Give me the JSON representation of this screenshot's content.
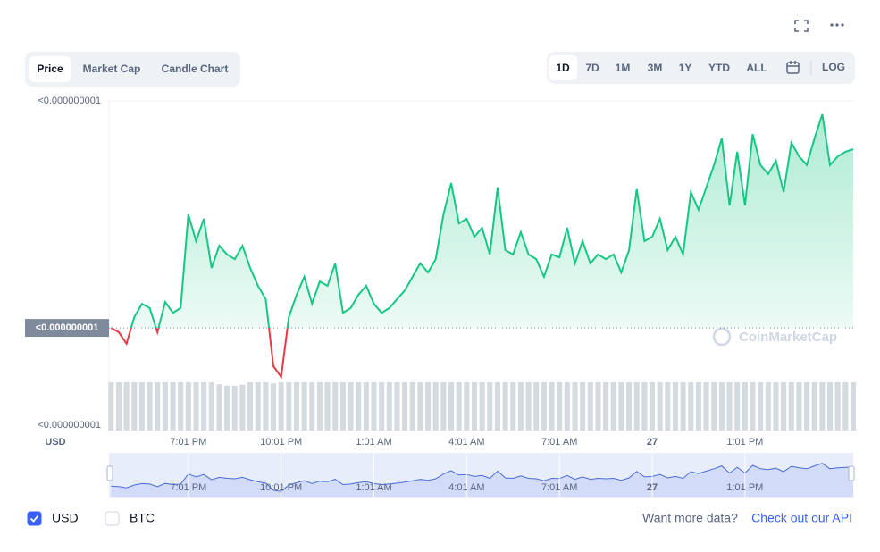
{
  "chart_data": {
    "type": "line",
    "categories": [
      null,
      null,
      null,
      null,
      null,
      null,
      null,
      null,
      null,
      null,
      "7:01 PM",
      null,
      null,
      null,
      null,
      null,
      null,
      null,
      null,
      null,
      null,
      null,
      "10:01 PM",
      null,
      null,
      null,
      null,
      null,
      null,
      null,
      null,
      null,
      null,
      null,
      "1:01 AM",
      null,
      null,
      null,
      null,
      null,
      null,
      null,
      null,
      null,
      null,
      null,
      "4:01 AM",
      null,
      null,
      null,
      null,
      null,
      null,
      null,
      null,
      null,
      null,
      null,
      "7:01 AM",
      null,
      null,
      null,
      null,
      null,
      null,
      null,
      null,
      null,
      null,
      null,
      "27",
      null,
      null,
      null,
      null,
      null,
      null,
      null,
      null,
      null,
      null,
      null,
      "1:01 PM",
      null,
      null,
      null,
      null,
      null,
      null,
      null,
      null,
      null,
      null,
      null,
      null,
      null,
      null
    ],
    "values": [
      9.27e-10,
      9.258e-10,
      9.226e-10,
      9.3e-10,
      9.337e-10,
      9.325e-10,
      9.258e-10,
      9.342e-10,
      9.312e-10,
      9.325e-10,
      9.585e-10,
      9.511e-10,
      9.573e-10,
      9.436e-10,
      9.498e-10,
      9.474e-10,
      9.461e-10,
      9.498e-10,
      9.436e-10,
      9.387e-10,
      9.35e-10,
      9.164e-10,
      9.134e-10,
      9.3e-10,
      9.362e-10,
      9.412e-10,
      9.337e-10,
      9.399e-10,
      9.387e-10,
      9.449e-10,
      9.312e-10,
      9.325e-10,
      9.362e-10,
      9.387e-10,
      9.337e-10,
      9.312e-10,
      9.325e-10,
      9.35e-10,
      9.374e-10,
      9.412e-10,
      9.449e-10,
      9.424e-10,
      9.461e-10,
      9.585e-10,
      9.672e-10,
      9.56e-10,
      9.573e-10,
      9.523e-10,
      9.548e-10,
      9.474e-10,
      9.66e-10,
      9.486e-10,
      9.474e-10,
      9.536e-10,
      9.474e-10,
      9.461e-10,
      9.412e-10,
      9.474e-10,
      9.466e-10,
      9.548e-10,
      9.449e-10,
      9.511e-10,
      9.449e-10,
      9.474e-10,
      9.461e-10,
      9.474e-10,
      9.424e-10,
      9.486e-10,
      9.655e-10,
      9.511e-10,
      9.523e-10,
      9.573e-10,
      9.486e-10,
      9.523e-10,
      9.474e-10,
      9.647e-10,
      9.598e-10,
      9.66e-10,
      9.722e-10,
      9.796e-10,
      9.61e-10,
      9.759e-10,
      9.61e-10,
      9.808e-10,
      9.722e-10,
      9.697e-10,
      9.734e-10,
      9.647e-10,
      9.784e-10,
      9.746e-10,
      9.722e-10,
      9.796e-10,
      9.863e-10,
      9.722e-10,
      9.746e-10,
      9.759e-10,
      9.766e-10
    ],
    "volume": {
      "ylim": [
        0,
        100
      ],
      "values": [
        100,
        100,
        100,
        100,
        100,
        100,
        100,
        100,
        100,
        100,
        100,
        100,
        100,
        100,
        96,
        93,
        93,
        95,
        100,
        100,
        100,
        98,
        100,
        100,
        100,
        100,
        100,
        100,
        100,
        100,
        100,
        100,
        100,
        100,
        100,
        100,
        100,
        100,
        100,
        100,
        100,
        100,
        100,
        100,
        100,
        100,
        100,
        100,
        100,
        100,
        100,
        100,
        100,
        100,
        100,
        100,
        100,
        100,
        100,
        100,
        100,
        100,
        100,
        100,
        100,
        100,
        100,
        100,
        100,
        100,
        100,
        100,
        100,
        100,
        100,
        100,
        100,
        100,
        100,
        100,
        100,
        100,
        100,
        100,
        100,
        100,
        100,
        100,
        100,
        100,
        100,
        100,
        100,
        100,
        100,
        100,
        100
      ]
    },
    "ylim": [
      9e-10,
      9.9e-10
    ],
    "yticks": [
      {
        "value": 9.9e-10,
        "label": "<0.000000001"
      },
      {
        "value": 9e-10,
        "label": "<0.000000001"
      }
    ],
    "reference": {
      "value": 9.27e-10,
      "label": "<0.000000001"
    },
    "y_label": "USD",
    "up_color": "#16c784",
    "down_color": "#ea3943",
    "volume_color": "#d5d9e0",
    "navigator_color": "#4a6cd4",
    "watermark": "CoinMarketCap"
  },
  "toolbar": {
    "tabs": [
      "Price",
      "Market Cap",
      "Candle Chart"
    ],
    "active_tab": 0,
    "ranges": [
      "1D",
      "7D",
      "1M",
      "3M",
      "1Y",
      "YTD",
      "ALL"
    ],
    "active_range": 0,
    "log": "LOG"
  },
  "currencies": [
    {
      "name": "USD",
      "checked": true
    },
    {
      "name": "BTC",
      "checked": false
    }
  ],
  "footer": {
    "prompt": "Want more data?",
    "link": "Check out our API"
  }
}
